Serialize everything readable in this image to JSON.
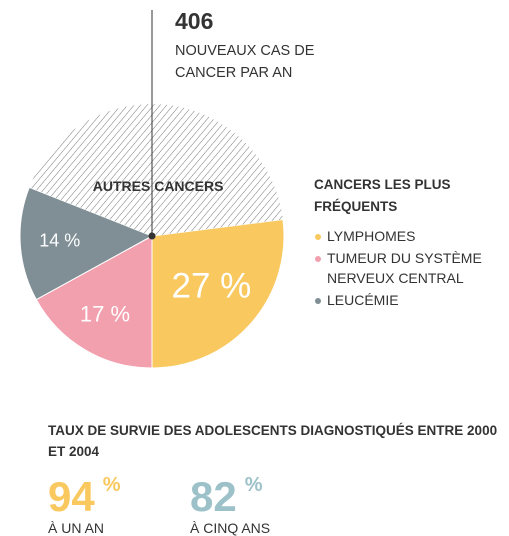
{
  "chart_data": {
    "type": "pie",
    "total": 406,
    "total_label": "NOUVEAUX CAS DE CANCER PAR AN",
    "legend_title": "CANCERS LES PLUS FRÉQUENTS",
    "categories": [
      "LYMPHOMES",
      "TUMEUR DU SYSTÈME NERVEUX CENTRAL",
      "LEUCÉMIE",
      "AUTRES CANCERS"
    ],
    "values": [
      27,
      17,
      14,
      42
    ],
    "value_labels": [
      "27 %",
      "17 %",
      "14 %",
      null
    ],
    "colors": [
      "#f9c85f",
      "#f29fae",
      "#7f8f95",
      "#555555"
    ],
    "survival_title": "TAUX DE SURVIE DES ADOLESCENTS DIAGNOSTIQUÉS ENTRE 2000 ET 2004",
    "survival": [
      {
        "value": 94,
        "unit": "%",
        "label": "À UN AN",
        "color": "#f9c85f"
      },
      {
        "value": 82,
        "unit": "%",
        "label": "À CINQ ANS",
        "color": "#9dc1c9"
      }
    ]
  }
}
